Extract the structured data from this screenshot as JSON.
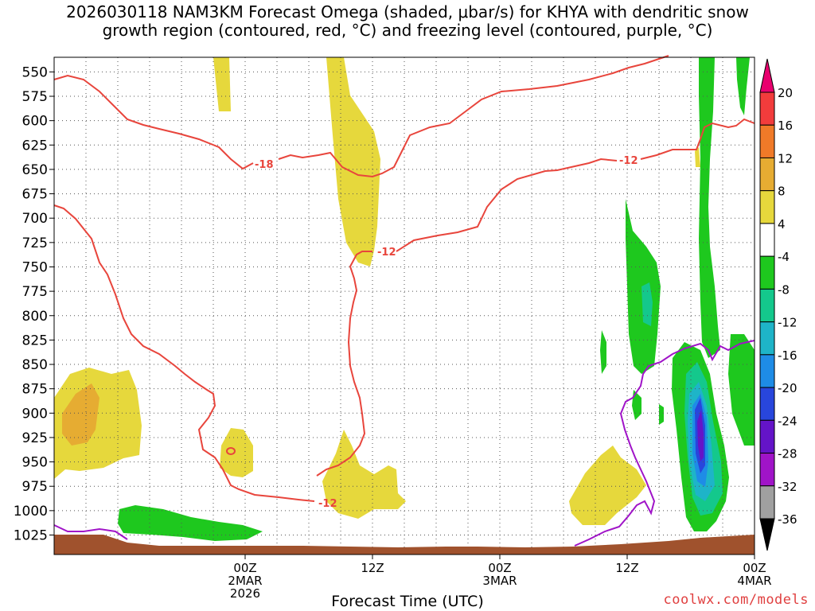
{
  "chart_data": {
    "type": "contour",
    "title_line1": "2026030118 NAM3KM Forecast Omega (shaded, μbar/s) for KHYA with dendritic snow",
    "title_line2": "growth region (contoured, red, °C) and freezing level (contoured, purple, °C)",
    "xlabel": "Forecast Time (UTC)",
    "credit": "coolwx.com/models",
    "y_axis": {
      "unit": "hPa",
      "ticks": [
        550,
        575,
        600,
        625,
        650,
        675,
        700,
        725,
        750,
        775,
        800,
        825,
        850,
        875,
        900,
        925,
        950,
        975,
        1000,
        1025
      ],
      "range": [
        535,
        1045
      ]
    },
    "x_axis": {
      "range_hours": [
        -18,
        48
      ],
      "ticks": [
        {
          "hour": 0,
          "lines": [
            "00Z",
            "2MAR",
            "2026"
          ]
        },
        {
          "hour": 12,
          "lines": [
            "12Z"
          ]
        },
        {
          "hour": 24,
          "lines": [
            "00Z",
            "3MAR"
          ]
        },
        {
          "hour": 36,
          "lines": [
            "12Z"
          ]
        },
        {
          "hour": 48,
          "lines": [
            "00Z",
            "4MAR"
          ]
        }
      ]
    },
    "colorbar": {
      "labels": [
        20,
        16,
        12,
        8,
        4,
        -4,
        -8,
        -12,
        -16,
        -20,
        -24,
        -28,
        -32,
        -36
      ],
      "colors": [
        "#e8006e",
        "#f23c3c",
        "#f07a28",
        "#e6ac32",
        "#e6d83c",
        "#ffffff",
        "#1ec81e",
        "#14c88c",
        "#1eb4c8",
        "#1e8ce6",
        "#2846dc",
        "#6414c8",
        "#a014c8",
        "#a0a0a0",
        "#000000"
      ]
    },
    "contours": {
      "dgz_labels": [
        "-18",
        "-12",
        "-12",
        "-12"
      ],
      "dgz_color": "#e8453c",
      "freezing_color": "#a014c8"
    },
    "terrain_color": "#a0522d"
  }
}
